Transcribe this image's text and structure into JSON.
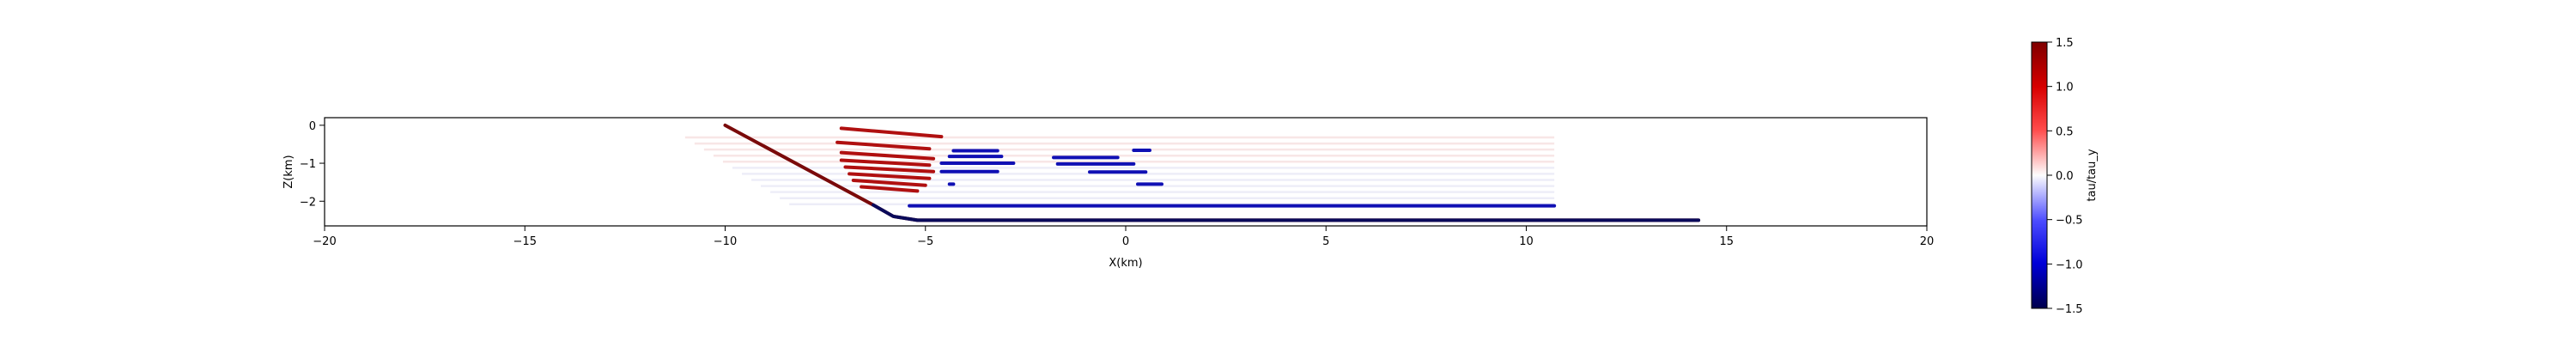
{
  "chart_data": {
    "type": "scatter",
    "title": "",
    "xlabel": "X(km)",
    "ylabel": "Z(km)",
    "xlim": [
      -20,
      20
    ],
    "ylim": [
      -2.65,
      0.2
    ],
    "xticks": [
      -20,
      -15,
      -10,
      -5,
      0,
      5,
      10,
      15,
      20
    ],
    "yticks": [
      0,
      -1,
      -2
    ],
    "grid": false,
    "colormap": "seismic",
    "colorbar": {
      "label": "tau/tau_y",
      "range": [
        -1.5,
        1.5
      ],
      "ticks": [
        1.5,
        1.0,
        0.5,
        0.0,
        -0.5,
        -1.0,
        -1.5
      ]
    },
    "series": [
      {
        "kind": "fault",
        "color": "#7a0a0a",
        "points": [
          [
            -10.0,
            0.0
          ],
          [
            -7.8,
            -1.25
          ],
          [
            -6.3,
            -2.1
          ],
          [
            -5.8,
            -2.4
          ],
          [
            -5.2,
            -2.5
          ],
          [
            14.3,
            -2.5
          ]
        ]
      },
      {
        "kind": "positive-segments",
        "value": 1.4,
        "color": "#b01010",
        "segments": [
          {
            "x": [
              -7.1,
              -4.6
            ],
            "z": [
              -0.08,
              -0.3
            ]
          },
          {
            "x": [
              -7.2,
              -4.9
            ],
            "z": [
              -0.45,
              -0.62
            ]
          },
          {
            "x": [
              -7.1,
              -4.8
            ],
            "z": [
              -0.72,
              -0.88
            ]
          },
          {
            "x": [
              -7.1,
              -4.9
            ],
            "z": [
              -0.92,
              -1.05
            ]
          },
          {
            "x": [
              -7.0,
              -4.8
            ],
            "z": [
              -1.1,
              -1.22
            ]
          },
          {
            "x": [
              -6.9,
              -4.9
            ],
            "z": [
              -1.28,
              -1.4
            ]
          },
          {
            "x": [
              -6.8,
              -5.0
            ],
            "z": [
              -1.45,
              -1.58
            ]
          },
          {
            "x": [
              -6.6,
              -5.2
            ],
            "z": [
              -1.62,
              -1.73
            ]
          }
        ]
      },
      {
        "kind": "negative-segments",
        "value": -1.4,
        "color": "#1010b4",
        "segments": [
          {
            "x": [
              -4.3,
              -3.2
            ],
            "z": [
              -0.67,
              -0.67
            ]
          },
          {
            "x": [
              -4.4,
              -3.1
            ],
            "z": [
              -0.82,
              -0.82
            ]
          },
          {
            "x": [
              -4.6,
              -2.8
            ],
            "z": [
              -1.0,
              -1.0
            ]
          },
          {
            "x": [
              -4.6,
              -3.2
            ],
            "z": [
              -1.22,
              -1.22
            ]
          },
          {
            "x": [
              -1.8,
              -0.2
            ],
            "z": [
              -0.85,
              -0.85
            ]
          },
          {
            "x": [
              -1.7,
              0.2
            ],
            "z": [
              -1.02,
              -1.02
            ]
          },
          {
            "x": [
              -0.9,
              0.5
            ],
            "z": [
              -1.23,
              -1.23
            ]
          },
          {
            "x": [
              0.2,
              0.6
            ],
            "z": [
              -0.66,
              -0.66
            ]
          },
          {
            "x": [
              0.3,
              0.9
            ],
            "z": [
              -1.55,
              -1.55
            ]
          },
          {
            "x": [
              -5.4,
              10.7
            ],
            "z": [
              -2.12,
              -2.12
            ]
          },
          {
            "x": [
              -4.4,
              -4.3
            ],
            "z": [
              -1.55,
              -1.55
            ]
          }
        ]
      },
      {
        "kind": "faint-background",
        "value": 0.05,
        "rows_z": [
          -0.32,
          -0.48,
          -0.64,
          -0.8,
          -0.96,
          -1.12,
          -1.28,
          -1.44,
          -1.6,
          -1.76,
          -1.92,
          -2.08
        ],
        "x_start": [
          -11.0,
          -8.4
        ],
        "x_end": 10.7
      }
    ]
  }
}
